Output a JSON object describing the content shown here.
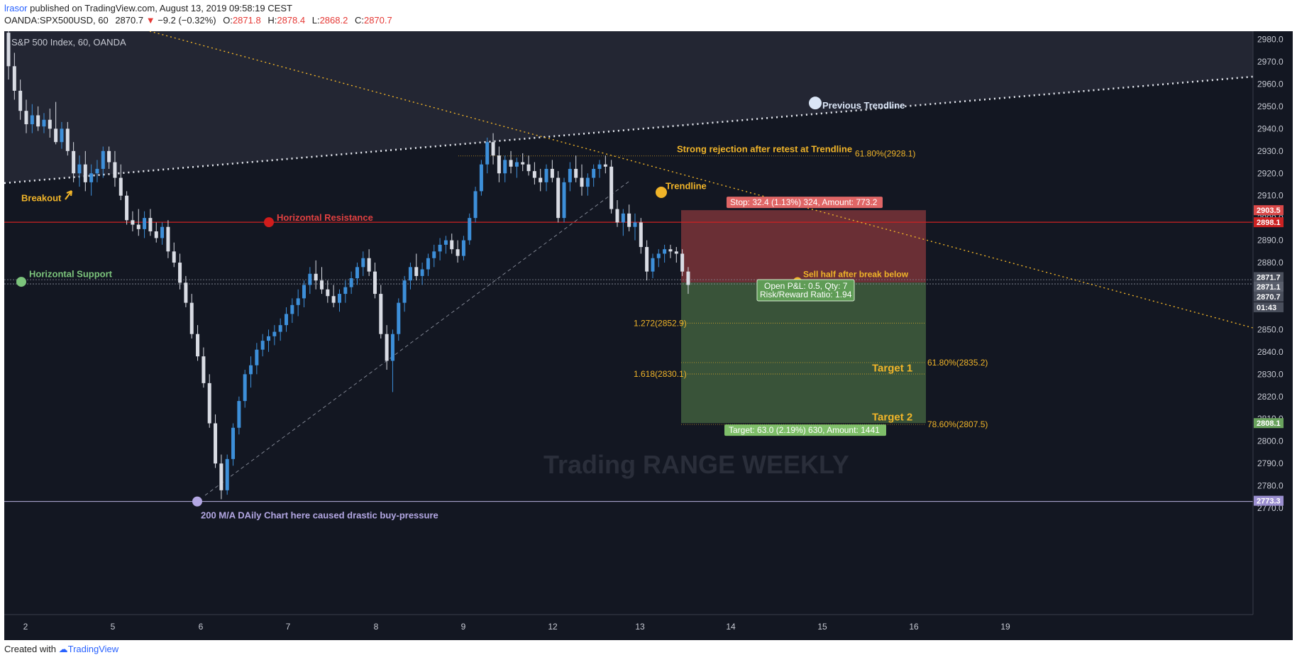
{
  "header": {
    "author": "lrasor",
    "published": "published on TradingView.com, August 13, 2019 09:58:19 CEST",
    "symbol": "OANDA:SPX500USD, 60",
    "last": "2870.7",
    "change": "−9.2 (−0.32%)",
    "open_label": "O:",
    "open": "2871.8",
    "high_label": "H:",
    "high": "2878.4",
    "low_label": "L:",
    "low": "2868.2",
    "close_label": "C:",
    "close": "2870.7"
  },
  "legend": "S&P 500 Index, 60, OANDA",
  "watermark": "Trading RANGE WEEKLY",
  "footer": {
    "created": "Created with",
    "brand": "TradingView"
  },
  "colors": {
    "background": "#141823",
    "up": "#3d8fd9",
    "down": "#d9dce4",
    "resistance": "#cc2222",
    "support": "#6fc26f",
    "accent": "#f0b429",
    "stop_zone": "#7a3438",
    "target_zone": "#3e5a3c"
  },
  "chart_data": {
    "type": "candlestick",
    "symbol": "SPX500USD",
    "ylim": [
      2764,
      2986
    ],
    "y_ticks": [
      2770,
      2780,
      2790,
      2800,
      2810,
      2820,
      2830,
      2840,
      2850,
      2860,
      2870,
      2880,
      2890,
      2900,
      2910,
      2920,
      2930,
      2940,
      2950,
      2960,
      2970,
      2980
    ],
    "x_ticks": [
      "2",
      "5",
      "6",
      "7",
      "8",
      "9",
      "12",
      "13",
      "14",
      "15",
      "16",
      "19"
    ],
    "price_tags": [
      {
        "value": 2903.5,
        "label": "2903.5",
        "color": "#d94848"
      },
      {
        "value": 2898.1,
        "label": "2898.1",
        "color": "#cc2222"
      },
      {
        "value": 2873.5,
        "label": "2871.7",
        "color": "#4a4f5c"
      },
      {
        "value": 2869.2,
        "label": "2871.1",
        "color": "#5a5f6c"
      },
      {
        "value": 2864.8,
        "label": "2870.7",
        "color": "#4a4f5c"
      },
      {
        "value": 2860.0,
        "label": "01:43",
        "color": "#4a4f5c"
      },
      {
        "value": 2808.1,
        "label": "2808.1",
        "color": "#6aa35e"
      },
      {
        "value": 2773.3,
        "label": "2773.3",
        "color": "#9b8fd0"
      }
    ],
    "levels": {
      "horizontal_resistance": 2898.1,
      "horizontal_support": [
        2871.1,
        2871.7
      ],
      "bottom_line": 2773.3,
      "fib_61_8_top": 2928.1
    },
    "annotations": {
      "breakout": "Breakout",
      "horizontal_resistance": "Horizontal Resistance",
      "horizontal_support": "Horizontal Support",
      "previous_trendline": "Previous Trendline",
      "strong_rejection": "Strong rejection after retest at Trendline",
      "trendline": "Trendline",
      "ma_note": "200 M/A DAily Chart here caused drastic buy-pressure",
      "fib_top": "61.80%(2928.1)",
      "ext_1272": "1.272(2852.9)",
      "ext_1618": "1.618(2830.1)",
      "fib_6180": "61.80%(2835.2)",
      "fib_7860": "78.60%(2807.5)",
      "target1": "Target 1",
      "target2": "Target 2",
      "stop_label": "Stop: 32.4 (1.13%) 324, Amount: 773.2",
      "target_label": "Target: 63.0 (2.19%) 630, Amount: 1441",
      "open_pnl": "Open P&L: 0.5, Qty: 7",
      "risk_reward": "Risk/Reward Ratio: 1.94",
      "sell_note": "Sell half after break below"
    },
    "position": {
      "entry": 2871.1,
      "stop": 2903.5,
      "target": 2808.1,
      "extension_1272": 2852.9,
      "extension_1618": 2830.1,
      "fib_6180": 2835.2,
      "fib_7860": 2807.5
    },
    "candles": [
      [
        2983,
        2990,
        2962,
        2968
      ],
      [
        2968,
        2974,
        2953,
        2957
      ],
      [
        2957,
        2962,
        2944,
        2948
      ],
      [
        2948,
        2953,
        2938,
        2942
      ],
      [
        2942,
        2951,
        2938,
        2946
      ],
      [
        2946,
        2950,
        2939,
        2941
      ],
      [
        2941,
        2947,
        2938,
        2944
      ],
      [
        2944,
        2949,
        2936,
        2940
      ],
      [
        2940,
        2952,
        2933,
        2934
      ],
      [
        2934,
        2943,
        2931,
        2940
      ],
      [
        2940,
        2943,
        2928,
        2930
      ],
      [
        2930,
        2934,
        2916,
        2920
      ],
      [
        2920,
        2928,
        2914,
        2924
      ],
      [
        2924,
        2930,
        2912,
        2916
      ],
      [
        2916,
        2924,
        2910,
        2920
      ],
      [
        2920,
        2926,
        2916,
        2922
      ],
      [
        2922,
        2932,
        2918,
        2930
      ],
      [
        2930,
        2932,
        2922,
        2925
      ],
      [
        2925,
        2930,
        2914,
        2918
      ],
      [
        2918,
        2924,
        2908,
        2910
      ],
      [
        2910,
        2912,
        2897,
        2899
      ],
      [
        2899,
        2903,
        2894,
        2897
      ],
      [
        2897,
        2904,
        2892,
        2895
      ],
      [
        2895,
        2903,
        2891,
        2900
      ],
      [
        2900,
        2904,
        2892,
        2894
      ],
      [
        2894,
        2898,
        2889,
        2891
      ],
      [
        2891,
        2898,
        2888,
        2896
      ],
      [
        2896,
        2899,
        2882,
        2885
      ],
      [
        2885,
        2889,
        2878,
        2880
      ],
      [
        2880,
        2884,
        2868,
        2871
      ],
      [
        2871,
        2874,
        2860,
        2862
      ],
      [
        2862,
        2866,
        2846,
        2848
      ],
      [
        2848,
        2852,
        2836,
        2838
      ],
      [
        2838,
        2842,
        2824,
        2826
      ],
      [
        2826,
        2830,
        2806,
        2808
      ],
      [
        2808,
        2812,
        2788,
        2790
      ],
      [
        2790,
        2794,
        2774,
        2778
      ],
      [
        2778,
        2794,
        2776,
        2792
      ],
      [
        2792,
        2808,
        2789,
        2806
      ],
      [
        2806,
        2820,
        2803,
        2818
      ],
      [
        2818,
        2832,
        2815,
        2830
      ],
      [
        2830,
        2838,
        2824,
        2834
      ],
      [
        2834,
        2844,
        2830,
        2841
      ],
      [
        2841,
        2848,
        2838,
        2845
      ],
      [
        2845,
        2850,
        2840,
        2847
      ],
      [
        2847,
        2852,
        2843,
        2849
      ],
      [
        2849,
        2855,
        2845,
        2852
      ],
      [
        2852,
        2860,
        2849,
        2857
      ],
      [
        2857,
        2864,
        2853,
        2861
      ],
      [
        2861,
        2868,
        2856,
        2864
      ],
      [
        2864,
        2872,
        2860,
        2870
      ],
      [
        2870,
        2878,
        2866,
        2875
      ],
      [
        2875,
        2881,
        2868,
        2872
      ],
      [
        2872,
        2878,
        2866,
        2868
      ],
      [
        2868,
        2872,
        2862,
        2865
      ],
      [
        2865,
        2870,
        2860,
        2862
      ],
      [
        2862,
        2868,
        2858,
        2866
      ],
      [
        2866,
        2872,
        2862,
        2869
      ],
      [
        2869,
        2876,
        2866,
        2873
      ],
      [
        2873,
        2880,
        2870,
        2878
      ],
      [
        2878,
        2885,
        2874,
        2882
      ],
      [
        2882,
        2886,
        2874,
        2876
      ],
      [
        2876,
        2880,
        2864,
        2866
      ],
      [
        2866,
        2870,
        2846,
        2848
      ],
      [
        2848,
        2852,
        2832,
        2836
      ],
      [
        2836,
        2850,
        2822,
        2848
      ],
      [
        2848,
        2864,
        2845,
        2862
      ],
      [
        2862,
        2874,
        2858,
        2872
      ],
      [
        2872,
        2880,
        2868,
        2878
      ],
      [
        2878,
        2884,
        2872,
        2874
      ],
      [
        2874,
        2880,
        2870,
        2877
      ],
      [
        2877,
        2884,
        2874,
        2882
      ],
      [
        2882,
        2888,
        2878,
        2885
      ],
      [
        2885,
        2891,
        2881,
        2888
      ],
      [
        2888,
        2892,
        2884,
        2890
      ],
      [
        2890,
        2893,
        2884,
        2886
      ],
      [
        2886,
        2890,
        2880,
        2883
      ],
      [
        2883,
        2892,
        2881,
        2890
      ],
      [
        2890,
        2902,
        2888,
        2900
      ],
      [
        2900,
        2914,
        2898,
        2912
      ],
      [
        2912,
        2926,
        2910,
        2924
      ],
      [
        2924,
        2936,
        2920,
        2934
      ],
      [
        2934,
        2938,
        2924,
        2928
      ],
      [
        2928,
        2932,
        2916,
        2920
      ],
      [
        2920,
        2928,
        2916,
        2926
      ],
      [
        2926,
        2930,
        2920,
        2923
      ],
      [
        2923,
        2927,
        2918,
        2925
      ],
      [
        2925,
        2929,
        2921,
        2924
      ],
      [
        2924,
        2928,
        2919,
        2921
      ],
      [
        2921,
        2925,
        2915,
        2918
      ],
      [
        2918,
        2922,
        2912,
        2916
      ],
      [
        2916,
        2924,
        2912,
        2922
      ],
      [
        2922,
        2926,
        2916,
        2918
      ],
      [
        2918,
        2921,
        2898,
        2900
      ],
      [
        2900,
        2918,
        2898,
        2916
      ],
      [
        2916,
        2925,
        2912,
        2922
      ],
      [
        2922,
        2928,
        2916,
        2918
      ],
      [
        2918,
        2924,
        2910,
        2914
      ],
      [
        2914,
        2920,
        2910,
        2918
      ],
      [
        2918,
        2924,
        2914,
        2922
      ],
      [
        2922,
        2926,
        2918,
        2924
      ],
      [
        2924,
        2928,
        2920,
        2923
      ],
      [
        2923,
        2926,
        2902,
        2904
      ],
      [
        2904,
        2908,
        2896,
        2898
      ],
      [
        2898,
        2904,
        2892,
        2902
      ],
      [
        2902,
        2906,
        2894,
        2896
      ],
      [
        2896,
        2902,
        2890,
        2898
      ],
      [
        2898,
        2900,
        2884,
        2887
      ],
      [
        2887,
        2890,
        2872,
        2876
      ],
      [
        2876,
        2884,
        2873,
        2882
      ],
      [
        2882,
        2886,
        2878,
        2884
      ],
      [
        2884,
        2888,
        2880,
        2886
      ],
      [
        2886,
        2888,
        2882,
        2885
      ],
      [
        2885,
        2887,
        2880,
        2884
      ],
      [
        2884,
        2886,
        2874,
        2876
      ],
      [
        2876,
        2878,
        2866,
        2870
      ]
    ],
    "candle_slot_start": 0,
    "candle_slot_step": 1
  }
}
